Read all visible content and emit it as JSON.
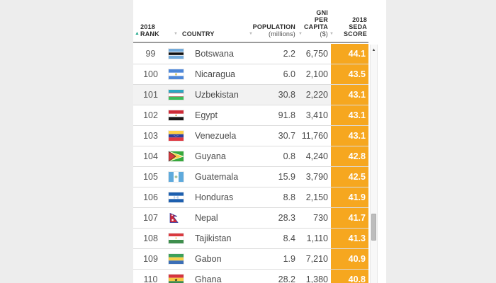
{
  "table": {
    "header": {
      "rank": {
        "lines": [
          "2018",
          "RANK"
        ],
        "sorted": "ascending"
      },
      "country": {
        "lines": [
          "COUNTRY"
        ]
      },
      "population": {
        "lines": [
          "POPULATION",
          "(millions)"
        ]
      },
      "gni": {
        "lines": [
          "GNI",
          "PER",
          "CAPITA",
          "($)"
        ]
      },
      "seda": {
        "lines": [
          "2018",
          "SEDA",
          "SCORE"
        ]
      }
    },
    "rows": [
      {
        "rank": "99",
        "country": "Botswana",
        "flag": "botswana",
        "population": "2.2",
        "gni": "6,750",
        "seda": "44.1"
      },
      {
        "rank": "100",
        "country": "Nicaragua",
        "flag": "nicaragua",
        "population": "6.0",
        "gni": "2,100",
        "seda": "43.5"
      },
      {
        "rank": "101",
        "country": "Uzbekistan",
        "flag": "uzbekistan",
        "population": "30.8",
        "gni": "2,220",
        "seda": "43.1"
      },
      {
        "rank": "102",
        "country": "Egypt",
        "flag": "egypt",
        "population": "91.8",
        "gni": "3,410",
        "seda": "43.1"
      },
      {
        "rank": "103",
        "country": "Venezuela",
        "flag": "venezuela",
        "population": "30.7",
        "gni": "11,760",
        "seda": "43.1"
      },
      {
        "rank": "104",
        "country": "Guyana",
        "flag": "guyana",
        "population": "0.8",
        "gni": "4,240",
        "seda": "42.8"
      },
      {
        "rank": "105",
        "country": "Guatemala",
        "flag": "guatemala",
        "population": "15.9",
        "gni": "3,790",
        "seda": "42.5"
      },
      {
        "rank": "106",
        "country": "Honduras",
        "flag": "honduras",
        "population": "8.8",
        "gni": "2,150",
        "seda": "41.9"
      },
      {
        "rank": "107",
        "country": "Nepal",
        "flag": "nepal",
        "population": "28.3",
        "gni": "730",
        "seda": "41.7"
      },
      {
        "rank": "108",
        "country": "Tajikistan",
        "flag": "tajikistan",
        "population": "8.4",
        "gni": "1,110",
        "seda": "41.3"
      },
      {
        "rank": "109",
        "country": "Gabon",
        "flag": "gabon",
        "population": "1.9",
        "gni": "7,210",
        "seda": "40.9"
      },
      {
        "rank": "110",
        "country": "Ghana",
        "flag": "ghana",
        "population": "28.2",
        "gni": "1,380",
        "seda": "40.8"
      }
    ],
    "highlighted_rank": "101"
  },
  "scrollbar": {
    "up_arrow": "▲"
  },
  "icons": {
    "sort_ascending_active": "▲",
    "sort_inactive": "▼"
  },
  "colors": {
    "seda_cell": "#F6A71F",
    "active_sort_arrow": "#2FAD93",
    "inactive_sort_arrow": "#B9B9B9",
    "highlight_row": "#F2F2F2"
  }
}
